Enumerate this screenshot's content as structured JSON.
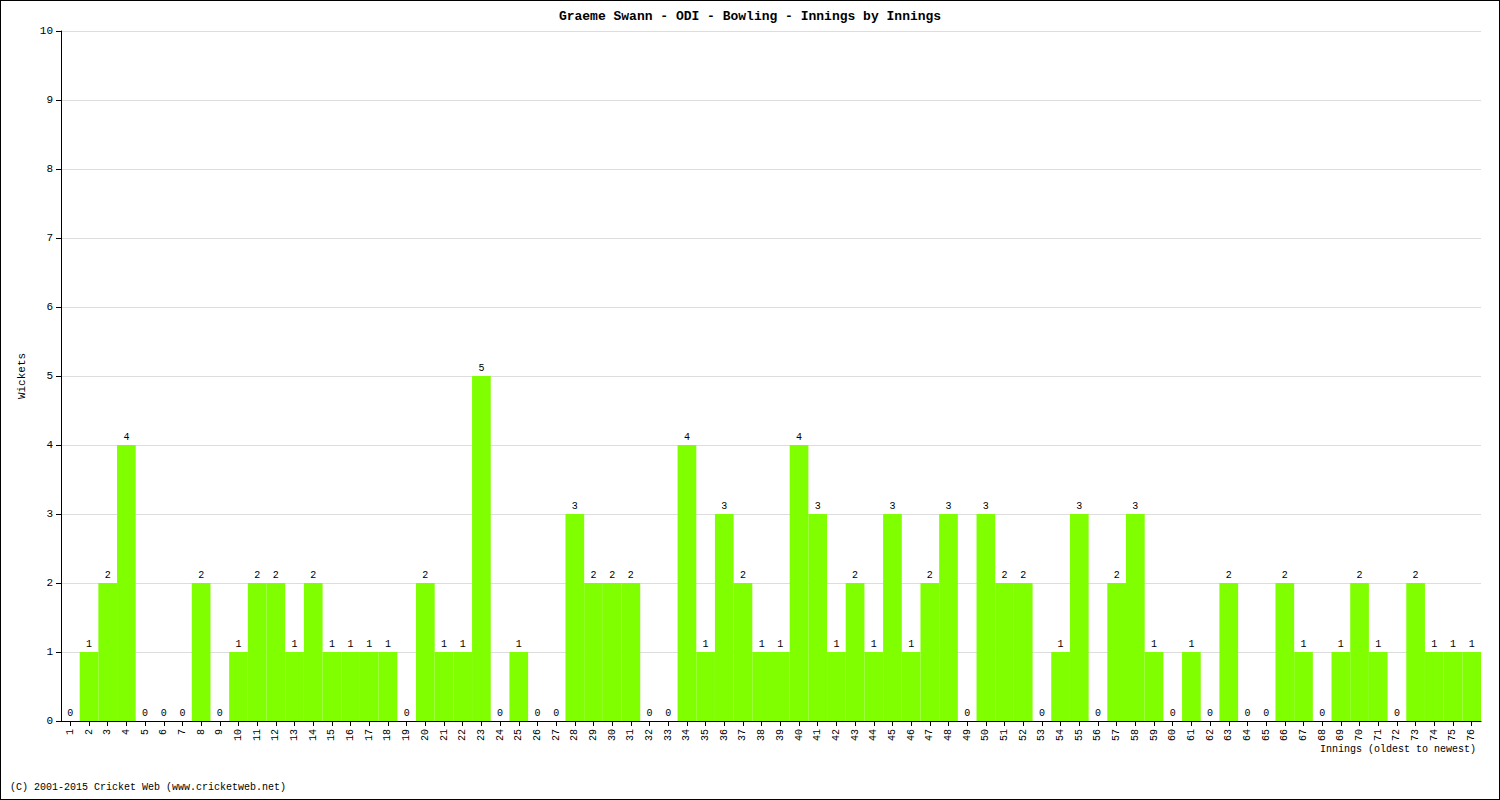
{
  "chart_data": {
    "type": "bar",
    "title": "Graeme Swann - ODI - Bowling - Innings by Innings",
    "x_label": "Innings (oldest to newest)",
    "y_label": "Wickets",
    "annotations": [
      "(C) 2001-2015 Cricket Web (www.cricketweb.net)"
    ],
    "categories": [
      "1",
      "2",
      "3",
      "4",
      "5",
      "6",
      "7",
      "8",
      "9",
      "10",
      "11",
      "12",
      "13",
      "14",
      "15",
      "16",
      "17",
      "18",
      "19",
      "20",
      "21",
      "22",
      "23",
      "24",
      "25",
      "26",
      "27",
      "28",
      "29",
      "30",
      "31",
      "32",
      "33",
      "34",
      "35",
      "36",
      "37",
      "38",
      "39",
      "40",
      "41",
      "42",
      "43",
      "44",
      "45",
      "46",
      "47",
      "48",
      "49",
      "50",
      "51",
      "52",
      "53",
      "54",
      "55",
      "56",
      "57",
      "58",
      "59",
      "60",
      "61",
      "62",
      "63",
      "64",
      "65",
      "66",
      "67",
      "68",
      "69",
      "70",
      "71",
      "72",
      "73",
      "74",
      "75",
      "76"
    ],
    "values": [
      0,
      1,
      2,
      4,
      0,
      0,
      0,
      2,
      0,
      1,
      2,
      2,
      1,
      2,
      1,
      1,
      1,
      1,
      0,
      2,
      1,
      1,
      5,
      0,
      1,
      0,
      0,
      3,
      2,
      2,
      2,
      0,
      0,
      4,
      1,
      3,
      2,
      1,
      1,
      4,
      3,
      1,
      2,
      1,
      3,
      1,
      2,
      3,
      0,
      3,
      2,
      2,
      0,
      1,
      3,
      0,
      2,
      3,
      1,
      0,
      1,
      0,
      2,
      0,
      0,
      2,
      1,
      0,
      1,
      2,
      1,
      0,
      2,
      1,
      1,
      1
    ],
    "color": "#80ff00",
    "ylim": [
      0,
      10
    ],
    "yticks": [
      0,
      1,
      2,
      3,
      4,
      5,
      6,
      7,
      8,
      9,
      10
    ],
    "grid": true,
    "data_labels": true
  }
}
